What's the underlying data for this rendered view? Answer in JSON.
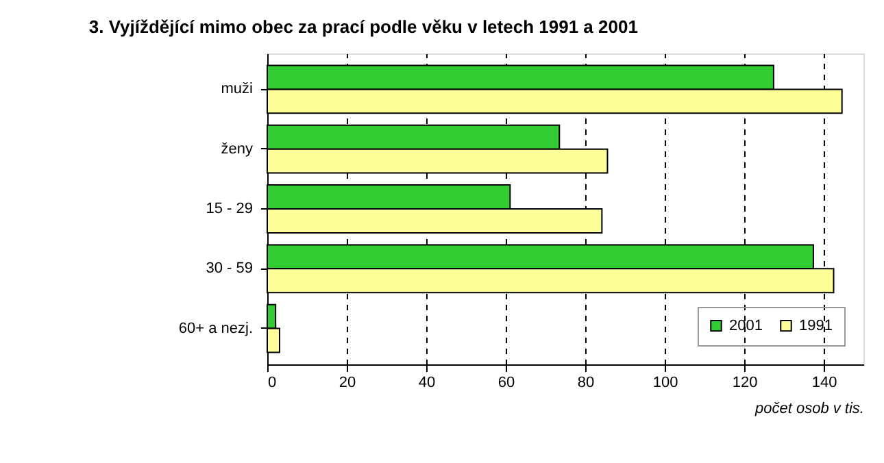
{
  "chart_data": {
    "type": "bar",
    "orientation": "horizontal",
    "title": "3. Vyjíždějící mimo obec za prací podle věku v letech 1991 a 2001",
    "xlabel": "počet osob v tis.",
    "categories": [
      "muži",
      "ženy",
      "15 - 29",
      "30 - 59",
      "60+ a nezj."
    ],
    "series": [
      {
        "name": "2001",
        "color": "#33cc33",
        "values": [
          127.4,
          73.5,
          61.1,
          137.4,
          2.1
        ]
      },
      {
        "name": "1991",
        "color": "#ffff99",
        "values": [
          144.6,
          85.6,
          84.2,
          142.5,
          3.1
        ]
      }
    ],
    "xlim": [
      0,
      150
    ],
    "xticks": [
      0,
      20,
      40,
      60,
      80,
      100,
      120,
      140
    ],
    "grid": "x",
    "legend": "bottom right"
  }
}
